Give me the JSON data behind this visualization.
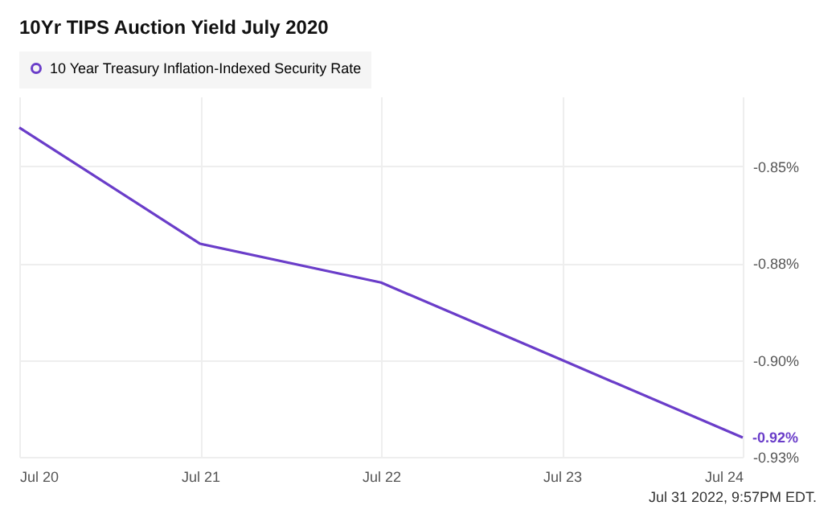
{
  "chart_data": {
    "type": "line",
    "title": "10Yr TIPS Auction Yield July 2020",
    "categories": [
      "Jul 20",
      "Jul 21",
      "Jul 22",
      "Jul 23",
      "Jul 24"
    ],
    "series": [
      {
        "name": "10 Year Treasury Inflation-Indexed Security Rate",
        "color": "#6a3dc9",
        "values": [
          -0.84,
          -0.87,
          -0.88,
          -0.9,
          -0.92
        ],
        "value_labels": [
          null,
          null,
          null,
          null,
          "-0.92%"
        ]
      }
    ],
    "ylim": [
      -0.925,
      -0.832
    ],
    "yticks": [
      {
        "value": -0.85,
        "label": "-0.85%"
      },
      {
        "value": -0.875,
        "label": "-0.88%"
      },
      {
        "value": -0.9,
        "label": "-0.90%"
      },
      {
        "value": -0.925,
        "label": "-0.93%"
      }
    ],
    "grid": true,
    "legend": "top left",
    "marker": "none",
    "line_style": "solid",
    "annotations": [
      "Jul 31 2022, 9:57PM EDT."
    ]
  }
}
